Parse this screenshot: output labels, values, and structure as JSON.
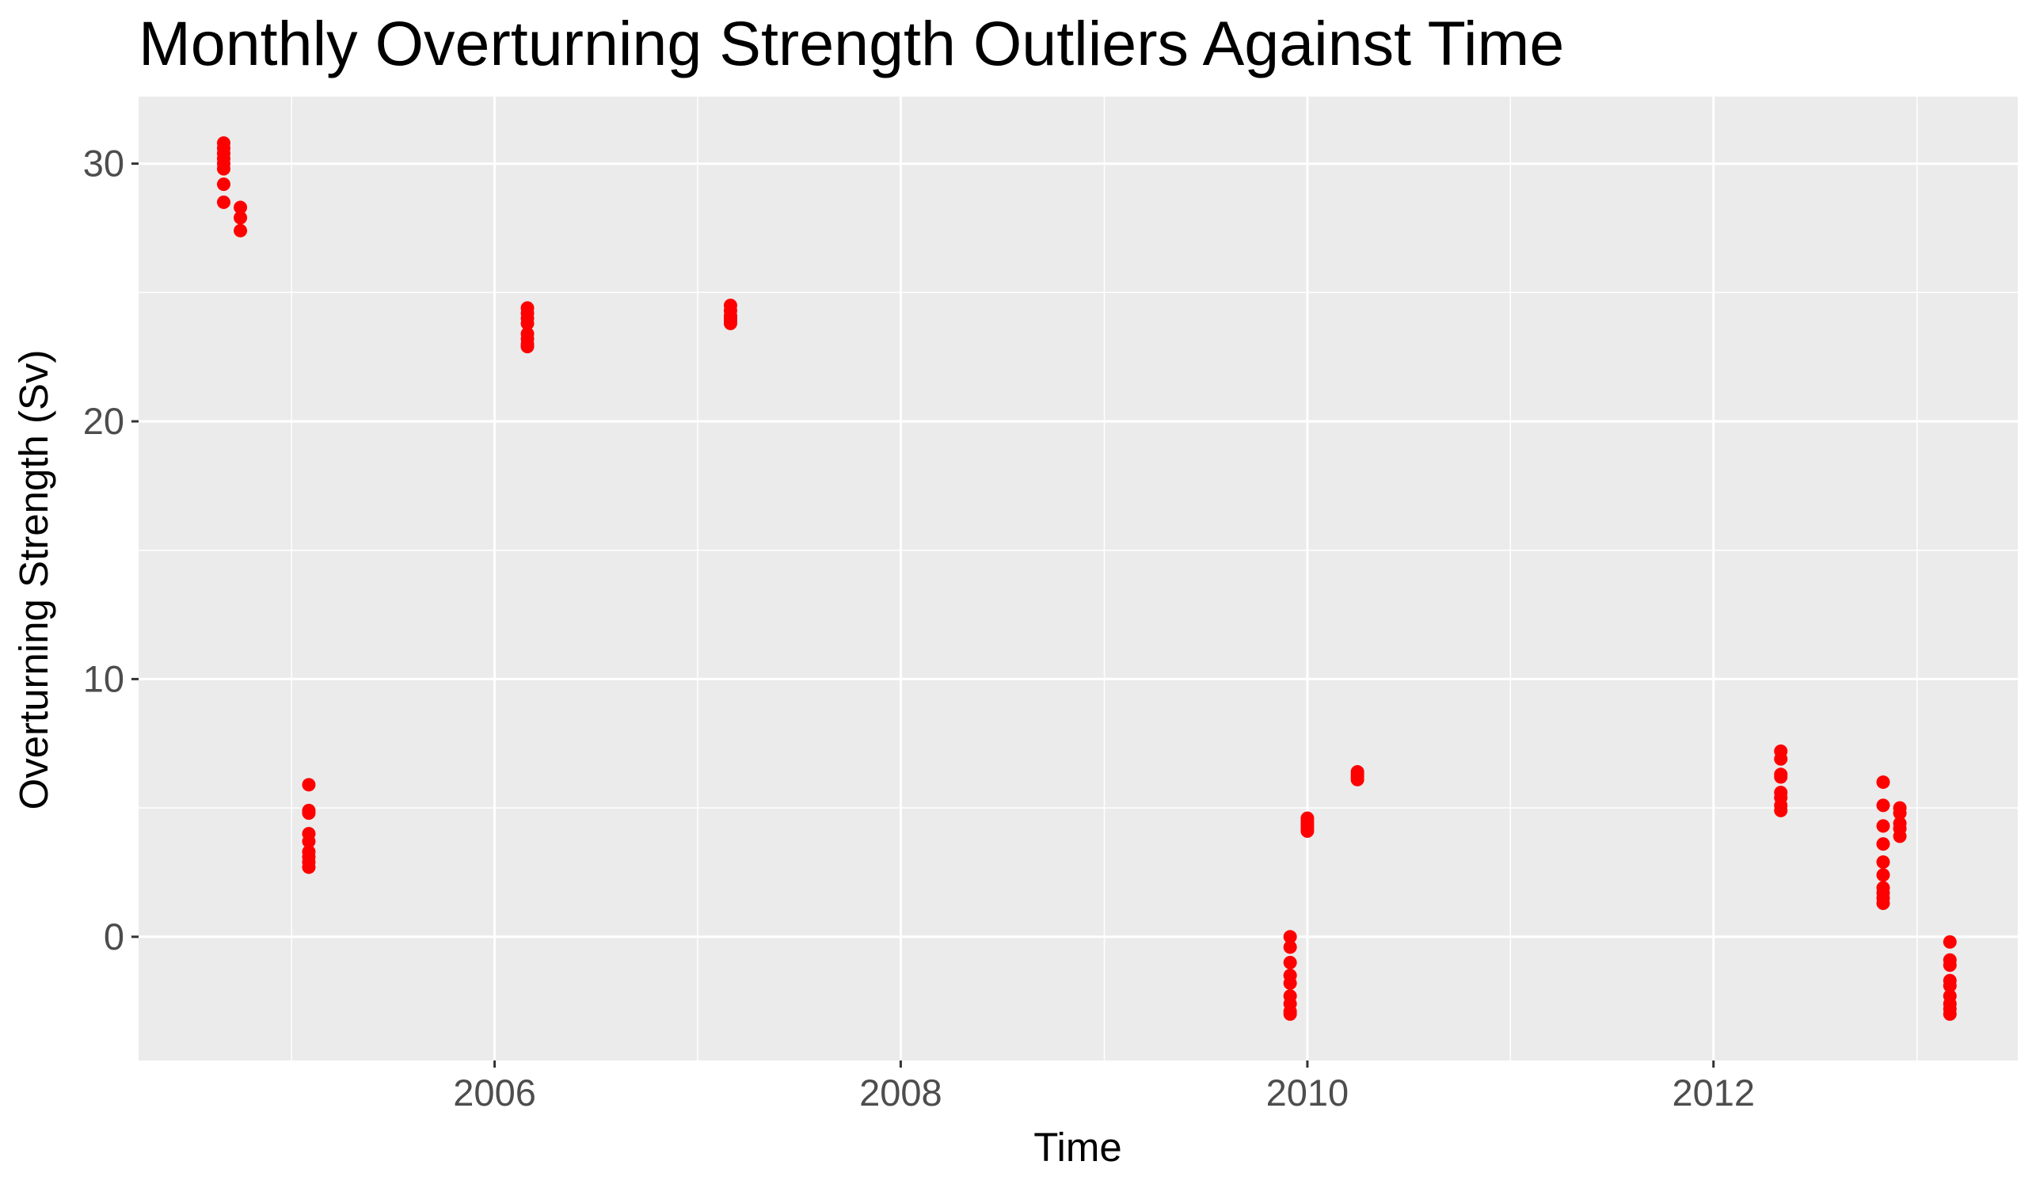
{
  "chart_data": {
    "type": "scatter",
    "title": "Monthly Overturning Strength Outliers Against Time",
    "xlabel": "Time",
    "ylabel": "Overturning Strength (Sv)",
    "xlim": [
      "2004-04-01",
      "2013-07-01"
    ],
    "ylim": [
      -4.8,
      32.6
    ],
    "x_ticks": [
      {
        "value": "2006-01-01",
        "label": "2006"
      },
      {
        "value": "2008-01-01",
        "label": "2008"
      },
      {
        "value": "2010-01-01",
        "label": "2010"
      },
      {
        "value": "2012-01-01",
        "label": "2012"
      }
    ],
    "x_minor_ticks": [
      "2005-01-01",
      "2007-01-01",
      "2009-01-01",
      "2011-01-01",
      "2013-01-01"
    ],
    "y_ticks": [
      0,
      10,
      20,
      30
    ],
    "y_minor_ticks": [
      -5,
      5,
      15,
      25
    ],
    "grid": true,
    "legend": "none",
    "point_color": "#ff0000",
    "panel_background": "#ebebeb",
    "grid_color": "#ffffff",
    "points": [
      {
        "x": "2004-09-01",
        "y": 30.8
      },
      {
        "x": "2004-09-01",
        "y": 30.6
      },
      {
        "x": "2004-09-01",
        "y": 30.4
      },
      {
        "x": "2004-09-01",
        "y": 30.2
      },
      {
        "x": "2004-09-01",
        "y": 30.0
      },
      {
        "x": "2004-09-01",
        "y": 29.8
      },
      {
        "x": "2004-09-01",
        "y": 29.2
      },
      {
        "x": "2004-09-01",
        "y": 28.5
      },
      {
        "x": "2004-10-01",
        "y": 28.3
      },
      {
        "x": "2004-10-01",
        "y": 27.9
      },
      {
        "x": "2004-10-01",
        "y": 27.4
      },
      {
        "x": "2005-02-01",
        "y": 5.9
      },
      {
        "x": "2005-02-01",
        "y": 4.9
      },
      {
        "x": "2005-02-01",
        "y": 4.8
      },
      {
        "x": "2005-02-01",
        "y": 4.0
      },
      {
        "x": "2005-02-01",
        "y": 3.7
      },
      {
        "x": "2005-02-01",
        "y": 3.3
      },
      {
        "x": "2005-02-01",
        "y": 3.1
      },
      {
        "x": "2005-02-01",
        "y": 2.9
      },
      {
        "x": "2005-02-01",
        "y": 2.7
      },
      {
        "x": "2006-03-01",
        "y": 24.4
      },
      {
        "x": "2006-03-01",
        "y": 24.2
      },
      {
        "x": "2006-03-01",
        "y": 24.0
      },
      {
        "x": "2006-03-01",
        "y": 23.8
      },
      {
        "x": "2006-03-01",
        "y": 23.4
      },
      {
        "x": "2006-03-01",
        "y": 23.2
      },
      {
        "x": "2006-03-01",
        "y": 23.0
      },
      {
        "x": "2006-03-01",
        "y": 22.9
      },
      {
        "x": "2007-03-01",
        "y": 24.5
      },
      {
        "x": "2007-03-01",
        "y": 24.3
      },
      {
        "x": "2007-03-01",
        "y": 24.1
      },
      {
        "x": "2007-03-01",
        "y": 24.0
      },
      {
        "x": "2007-03-01",
        "y": 23.9
      },
      {
        "x": "2007-03-01",
        "y": 23.8
      },
      {
        "x": "2009-12-01",
        "y": 0.0
      },
      {
        "x": "2009-12-01",
        "y": -0.4
      },
      {
        "x": "2009-12-01",
        "y": -1.0
      },
      {
        "x": "2009-12-01",
        "y": -1.5
      },
      {
        "x": "2009-12-01",
        "y": -1.8
      },
      {
        "x": "2009-12-01",
        "y": -2.3
      },
      {
        "x": "2009-12-01",
        "y": -2.6
      },
      {
        "x": "2009-12-01",
        "y": -2.9
      },
      {
        "x": "2009-12-01",
        "y": -3.0
      },
      {
        "x": "2010-01-01",
        "y": 4.6
      },
      {
        "x": "2010-01-01",
        "y": 4.5
      },
      {
        "x": "2010-01-01",
        "y": 4.4
      },
      {
        "x": "2010-01-01",
        "y": 4.3
      },
      {
        "x": "2010-01-01",
        "y": 4.2
      },
      {
        "x": "2010-01-01",
        "y": 4.1
      },
      {
        "x": "2010-04-01",
        "y": 6.4
      },
      {
        "x": "2010-04-01",
        "y": 6.3
      },
      {
        "x": "2010-04-01",
        "y": 6.2
      },
      {
        "x": "2010-04-01",
        "y": 6.1
      },
      {
        "x": "2012-05-01",
        "y": 7.2
      },
      {
        "x": "2012-05-01",
        "y": 6.9
      },
      {
        "x": "2012-05-01",
        "y": 6.3
      },
      {
        "x": "2012-05-01",
        "y": 6.2
      },
      {
        "x": "2012-05-01",
        "y": 5.6
      },
      {
        "x": "2012-05-01",
        "y": 5.4
      },
      {
        "x": "2012-05-01",
        "y": 5.1
      },
      {
        "x": "2012-05-01",
        "y": 4.9
      },
      {
        "x": "2012-11-01",
        "y": 6.0
      },
      {
        "x": "2012-11-01",
        "y": 5.1
      },
      {
        "x": "2012-11-01",
        "y": 4.3
      },
      {
        "x": "2012-11-01",
        "y": 3.6
      },
      {
        "x": "2012-11-01",
        "y": 2.9
      },
      {
        "x": "2012-11-01",
        "y": 2.4
      },
      {
        "x": "2012-11-01",
        "y": 1.9
      },
      {
        "x": "2012-11-01",
        "y": 1.7
      },
      {
        "x": "2012-11-01",
        "y": 1.5
      },
      {
        "x": "2012-11-01",
        "y": 1.3
      },
      {
        "x": "2012-12-01",
        "y": 5.0
      },
      {
        "x": "2012-12-01",
        "y": 4.8
      },
      {
        "x": "2012-12-01",
        "y": 4.4
      },
      {
        "x": "2012-12-01",
        "y": 4.2
      },
      {
        "x": "2012-12-01",
        "y": 3.9
      },
      {
        "x": "2013-03-01",
        "y": -0.2
      },
      {
        "x": "2013-03-01",
        "y": -0.9
      },
      {
        "x": "2013-03-01",
        "y": -1.1
      },
      {
        "x": "2013-03-01",
        "y": -1.7
      },
      {
        "x": "2013-03-01",
        "y": -1.9
      },
      {
        "x": "2013-03-01",
        "y": -2.3
      },
      {
        "x": "2013-03-01",
        "y": -2.6
      },
      {
        "x": "2013-03-01",
        "y": -2.8
      },
      {
        "x": "2013-03-01",
        "y": -3.0
      }
    ]
  }
}
